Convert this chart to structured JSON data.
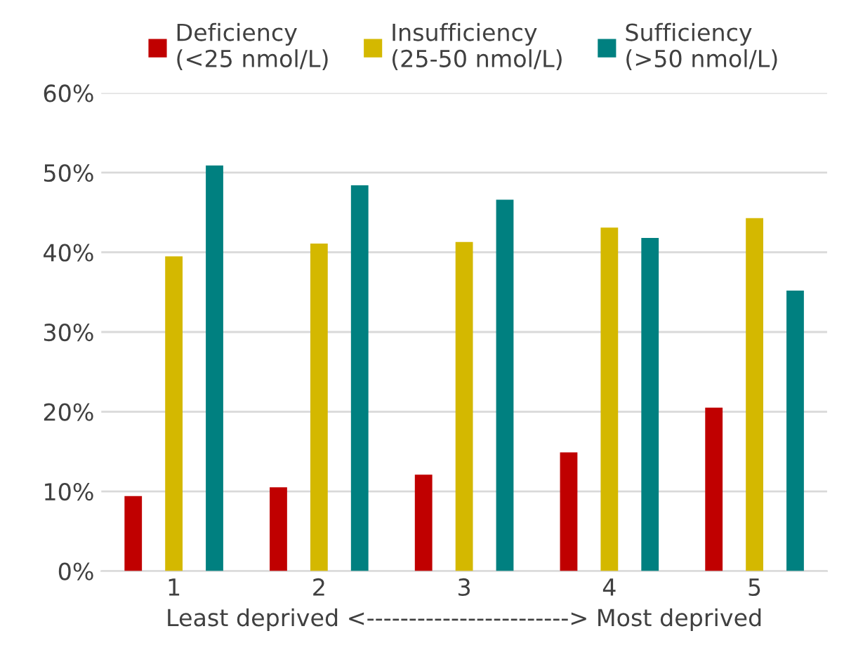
{
  "chart_data": {
    "type": "bar",
    "categories": [
      "1",
      "2",
      "3",
      "4",
      "5"
    ],
    "xlabel": "Least deprived <------------------------> Most deprived",
    "series": [
      {
        "name": "Deficiency\n(<25 nmol/L)",
        "color": "#c00000",
        "values": [
          9.4,
          10.5,
          12.1,
          14.9,
          20.5
        ]
      },
      {
        "name": "Insufficiency\n(25-50 nmol/L)",
        "color": "#d4b800",
        "values": [
          39.5,
          41.1,
          41.3,
          43.1,
          44.3
        ]
      },
      {
        "name": "Sufficiency\n(>50 nmol/L)",
        "color": "#008080",
        "values": [
          50.9,
          48.4,
          46.6,
          41.8,
          35.2
        ]
      }
    ],
    "ylim": [
      0,
      60
    ],
    "yticks": [
      {
        "value": 0,
        "label": "0%"
      },
      {
        "value": 10,
        "label": "10%"
      },
      {
        "value": 20,
        "label": "20%"
      },
      {
        "value": 30,
        "label": "30%"
      },
      {
        "value": 40,
        "label": "40%"
      },
      {
        "value": 50,
        "label": "50%"
      },
      {
        "value": 60,
        "label": "60%"
      }
    ],
    "grid": "y",
    "legend": "top"
  }
}
